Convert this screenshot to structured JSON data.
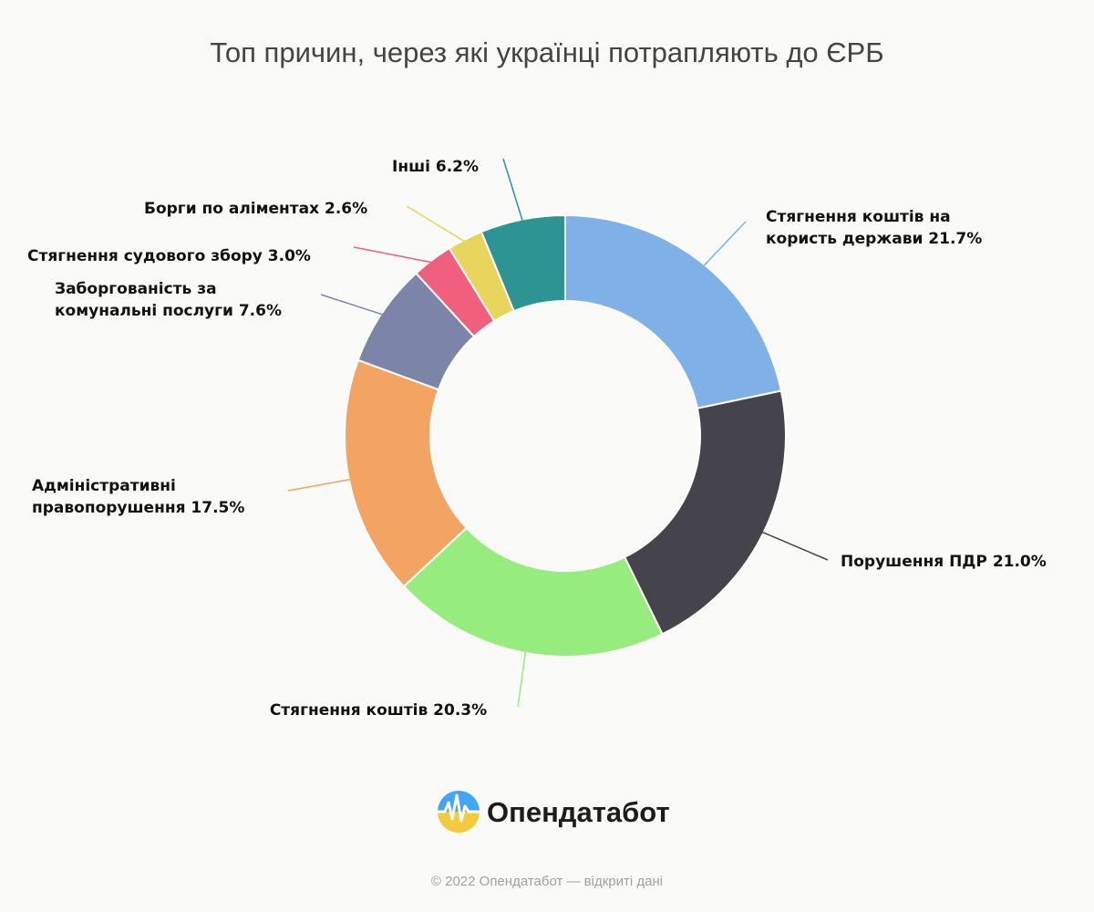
{
  "colors": {
    "background": "#fafbf9",
    "slice_stroke": "#ffffff",
    "title": "#444444",
    "label": "#111111",
    "footer": "#a0a0a0"
  },
  "chart_data": {
    "type": "pie",
    "donut": true,
    "title": "Топ причин, через які українці потрапляють до ЄРБ",
    "value_unit": "%",
    "slices": [
      {
        "label": "Стягнення коштів на користь держави",
        "value": 21.7,
        "color": "#7fb1e8"
      },
      {
        "label": "Порушення ПДР",
        "value": 21.0,
        "color": "#45434c"
      },
      {
        "label": "Стягнення коштів",
        "value": 20.3,
        "color": "#97ec7e"
      },
      {
        "label": "Адміністративні правопорушення",
        "value": 17.5,
        "color": "#f4a462"
      },
      {
        "label": "Заборгованість за комунальні послуги",
        "value": 7.6,
        "color": "#7c85a8"
      },
      {
        "label": "Стягнення судового збору",
        "value": 3.0,
        "color": "#f05f7e"
      },
      {
        "label": "Борги по аліментах",
        "value": 2.6,
        "color": "#e8d55d"
      },
      {
        "label": "Інші",
        "value": 6.2,
        "color": "#2d9493"
      }
    ],
    "data_labels": [
      [
        "Стягнення коштів на",
        "користь держави 21.7%"
      ],
      [
        "Порушення ПДР 21.0%"
      ],
      [
        "Стягнення коштів 20.3%"
      ],
      [
        "Адміністративні",
        "правопорушення 17.5%"
      ],
      [
        "Заборгованість за",
        "комунальні послуги 7.6%"
      ],
      [
        "Стягнення судового збору 3.0%"
      ],
      [
        "Борги по аліментах 2.6%"
      ],
      [
        "Інші 6.2%"
      ]
    ]
  },
  "brand": {
    "name": "Опендатабот",
    "logo_icon": "opendatabot-logo-icon",
    "logo_colors": [
      "#43a5f5",
      "#f3c93e"
    ]
  },
  "footer": {
    "text": "© 2022 Опендатабот — відкриті дані"
  }
}
